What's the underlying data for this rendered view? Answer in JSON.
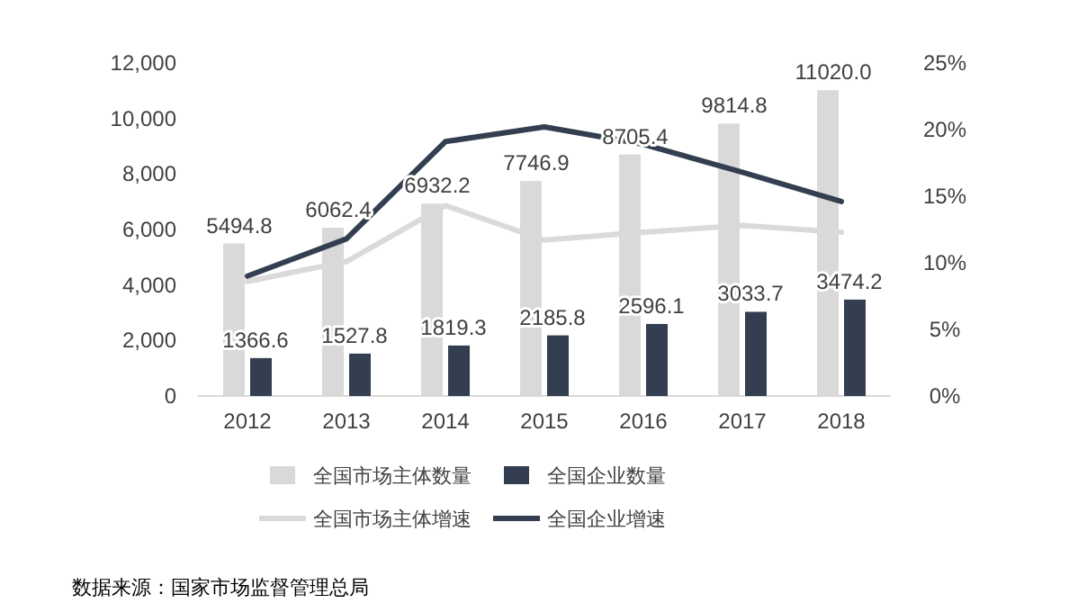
{
  "chart_data": {
    "type": "bar",
    "categories": [
      "2012",
      "2013",
      "2014",
      "2015",
      "2016",
      "2017",
      "2018"
    ],
    "series": [
      {
        "name": "全国市场主体数量",
        "color": "#d9d9d9",
        "values": [
          5494.8,
          6062.4,
          6932.2,
          7746.9,
          8705.4,
          9814.8,
          11020.0
        ],
        "value_labels": [
          "5494.8",
          "6062.4",
          "6932.2",
          "7746.9",
          "8705.4",
          "9814.8",
          "11020.0"
        ]
      },
      {
        "name": "全国企业数量",
        "color": "#333f50",
        "values": [
          1366.6,
          1527.8,
          1819.3,
          2185.8,
          2596.1,
          3033.7,
          3474.2
        ],
        "value_labels": [
          "1366.6",
          "1527.8",
          "1819.3",
          "2185.8",
          "2596.1",
          "3033.7",
          "3474.2"
        ]
      },
      {
        "name": "全国市场主体增速",
        "type": "line",
        "axis": "y2",
        "color": "#dadada",
        "values": [
          8.6,
          10.1,
          14.3,
          11.7,
          12.3,
          12.8,
          12.3
        ]
      },
      {
        "name": "全国企业增速",
        "type": "line",
        "axis": "y2",
        "color": "#333f50",
        "values": [
          9.0,
          11.8,
          19.1,
          20.2,
          18.9,
          16.8,
          14.6
        ]
      }
    ],
    "ylim": [
      0,
      12000
    ],
    "yticks": [
      {
        "value": 0,
        "label": "0"
      },
      {
        "value": 2000,
        "label": "2,000"
      },
      {
        "value": 4000,
        "label": "4,000"
      },
      {
        "value": 6000,
        "label": "6,000"
      },
      {
        "value": 8000,
        "label": "8,000"
      },
      {
        "value": 10000,
        "label": "10,000"
      },
      {
        "value": 12000,
        "label": "12,000"
      }
    ],
    "y2lim": [
      0,
      25
    ],
    "y2ticks": [
      {
        "value": 0,
        "label": "0%"
      },
      {
        "value": 5,
        "label": "5%"
      },
      {
        "value": 10,
        "label": "10%"
      },
      {
        "value": 15,
        "label": "15%"
      },
      {
        "value": 20,
        "label": "20%"
      },
      {
        "value": 25,
        "label": "25%"
      }
    ],
    "legend": "bottom",
    "grid": false,
    "marker": "none",
    "line_style": "solid",
    "annotations": [
      "数据来源：国家市场监督管理总局"
    ]
  }
}
